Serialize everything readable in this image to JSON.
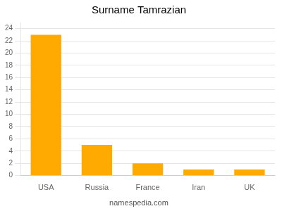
{
  "chart_data": {
    "type": "bar",
    "title": "Surname Tamrazian",
    "annotations": [
      "namespedia.com"
    ],
    "categories": [
      "USA",
      "Russia",
      "France",
      "Iran",
      "UK"
    ],
    "values": [
      23,
      5,
      2,
      1,
      1
    ],
    "color": "#FFAA00",
    "ylim": [
      0,
      25
    ],
    "yticks": [
      0,
      2,
      4,
      6,
      8,
      10,
      12,
      14,
      16,
      18,
      20,
      22,
      24
    ],
    "grid": true
  }
}
